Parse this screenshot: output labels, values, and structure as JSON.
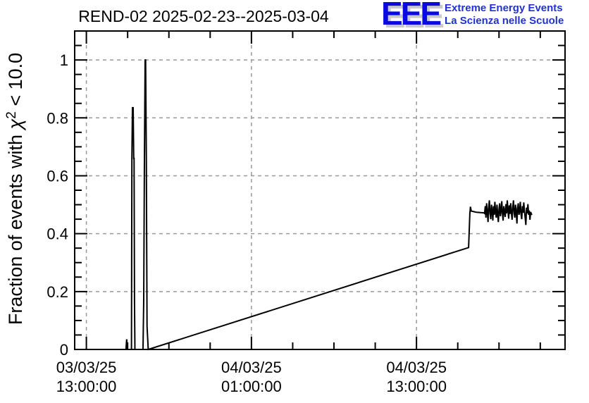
{
  "logo": {
    "acronym": "EEE",
    "line1": "Extreme Energy Events",
    "line2": "La Scienza nelle Scuole",
    "letter_color": "#0a0ae0",
    "shadow_color": "#c9c9c9",
    "text_color": "#2233cc"
  },
  "chart_data": {
    "type": "line",
    "title": "REND-02 2025-02-23--2025-03-04",
    "ylabel": "Fraction of events with χ² < 10.0",
    "ylabel_parts": {
      "prefix": "Fraction of events with ",
      "chi": "χ",
      "exponent": "2",
      "suffix": " < 10.0"
    },
    "x_unit": "hours since 2025-03-03 13:00:00",
    "xlim": [
      -0.85,
      34.8
    ],
    "ylim": [
      0,
      1.1
    ],
    "grid": true,
    "grid_color": "#999999",
    "line_color": "#000000",
    "x_major_ticks": [
      {
        "h": 0,
        "label_line1": "03/03/25",
        "label_line2": "13:00:00"
      },
      {
        "h": 12,
        "label_line1": "04/03/25",
        "label_line2": "01:00:00"
      },
      {
        "h": 24,
        "label_line1": "04/03/25",
        "label_line2": "13:00:00"
      }
    ],
    "x_minor_step_hours": 3,
    "y_major_ticks": [
      0,
      0.2,
      0.4,
      0.6,
      0.8,
      1
    ],
    "y_tick_labels": [
      "0",
      "0.2",
      "0.4",
      "0.6",
      "0.8",
      "1"
    ],
    "y_minor_step": 0.05,
    "points": [
      [
        -0.82,
        0
      ],
      [
        2.88,
        0
      ],
      [
        2.93,
        0.035
      ],
      [
        2.98,
        0
      ],
      [
        3.28,
        0
      ],
      [
        3.31,
        0.66
      ],
      [
        3.35,
        0.835
      ],
      [
        3.4,
        0.835
      ],
      [
        3.44,
        0.66
      ],
      [
        3.47,
        0.66
      ],
      [
        3.5,
        0.17
      ],
      [
        3.53,
        0
      ],
      [
        4.12,
        0
      ],
      [
        4.17,
        0.17
      ],
      [
        4.22,
        0.66
      ],
      [
        4.27,
        1.0
      ],
      [
        4.31,
        1.0
      ],
      [
        4.36,
        0.66
      ],
      [
        4.41,
        0.08
      ],
      [
        4.5,
        0
      ],
      [
        27.79,
        0.352
      ],
      [
        27.85,
        0.43
      ],
      [
        27.88,
        0.47
      ],
      [
        27.92,
        0.493
      ],
      [
        27.98,
        0.478
      ],
      [
        28.35,
        0.474
      ],
      [
        28.9,
        0.472
      ]
    ],
    "noise_start_h": 28.95,
    "noise_step_h": 0.05,
    "noise_values": [
      0.47,
      0.495,
      0.455,
      0.505,
      0.475,
      0.44,
      0.49,
      0.515,
      0.47,
      0.45,
      0.5,
      0.48,
      0.445,
      0.495,
      0.465,
      0.51,
      0.475,
      0.455,
      0.5,
      0.47,
      0.44,
      0.485,
      0.505,
      0.46,
      0.478,
      0.512,
      0.468,
      0.445,
      0.495,
      0.475,
      0.458,
      0.502,
      0.47,
      0.515,
      0.48,
      0.452,
      0.498,
      0.468,
      0.505,
      0.472,
      0.448,
      0.492,
      0.515,
      0.47,
      0.455,
      0.5,
      0.475,
      0.435,
      0.488,
      0.505,
      0.465,
      0.478,
      0.51,
      0.468,
      0.45,
      0.495,
      0.472,
      0.508,
      0.478,
      0.455,
      0.43,
      0.49,
      0.47,
      0.502,
      0.465,
      0.48,
      0.448,
      0.475,
      0.468,
      0.465
    ]
  }
}
